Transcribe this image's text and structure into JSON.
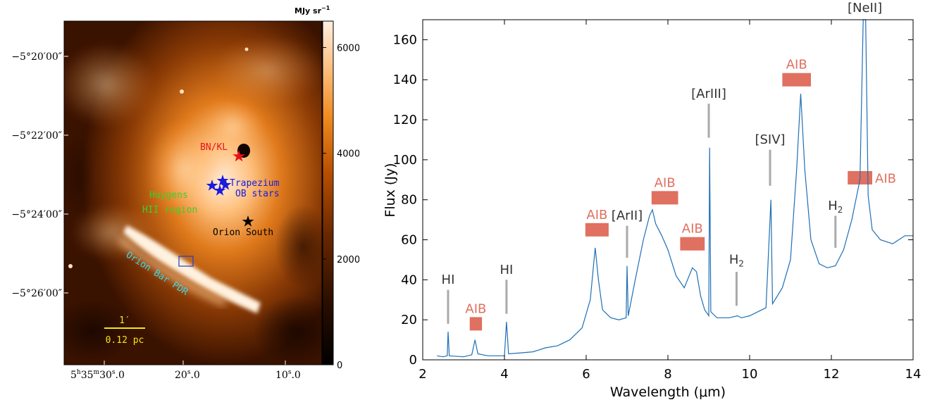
{
  "left_panel": {
    "colorbar": {
      "unit": "MJy sr",
      "unit_exp": "−1",
      "ticks": [
        "6000",
        "4000",
        "2000",
        "0"
      ],
      "tick_values": [
        6000,
        4000,
        2000,
        0
      ],
      "vmax": 6500,
      "colors": [
        "#000000",
        "#2a0e00",
        "#6a2800",
        "#b84f00",
        "#f08b1f",
        "#ffc58a",
        "#fff0e0"
      ]
    },
    "dec_ticks": [
      "−5°20′00″",
      "−5°22′00″",
      "−5°24′00″",
      "−5°26′00″"
    ],
    "ra_ticks": {
      "t1": {
        "h": "5",
        "hu": "h",
        "m": "35",
        "mu": "m",
        "s": "30",
        "su": "s",
        "f": ".0"
      },
      "t2": {
        "s": "20",
        "su": "s",
        "f": ".0"
      },
      "t3": {
        "s": "10",
        "su": "s",
        "f": ".0"
      }
    },
    "labels": {
      "bnkl": "BN/KL",
      "trapezium_1": "Trapezium",
      "trapezium_2": "OB stars",
      "huygens_1": "Huygens",
      "huygens_2": "HII region",
      "orion_south": "Orion South",
      "orion_bar": "Orion Bar PDR",
      "scale_top": "1′",
      "scale_bottom": "0.12 pc"
    },
    "label_colors": {
      "bnkl": "#e8121a",
      "trapezium": "#1a1ae0",
      "huygens": "#3ad12a",
      "orion_south": "#000000",
      "orion_bar": "#3fd8e0",
      "scale": "#f5e614"
    }
  },
  "chart_data": {
    "type": "line",
    "xlabel": "Wavelength (μm)",
    "ylabel": "Flux (Jy)",
    "xlim": [
      2,
      14
    ],
    "ylim": [
      0,
      170
    ],
    "x_ticks": [
      2,
      4,
      6,
      8,
      10,
      12,
      14
    ],
    "y_ticks": [
      0,
      20,
      40,
      60,
      80,
      100,
      120,
      140,
      160
    ],
    "line_color": "#1f6fb4",
    "series_points": [
      [
        2.35,
        2
      ],
      [
        2.5,
        1.5
      ],
      [
        2.6,
        2
      ],
      [
        2.62,
        14
      ],
      [
        2.65,
        2
      ],
      [
        3.0,
        1.5
      ],
      [
        3.2,
        2.5
      ],
      [
        3.28,
        10
      ],
      [
        3.35,
        3
      ],
      [
        3.6,
        2
      ],
      [
        4.0,
        2
      ],
      [
        4.05,
        19
      ],
      [
        4.1,
        3
      ],
      [
        4.4,
        3.5
      ],
      [
        4.7,
        4
      ],
      [
        5.0,
        6
      ],
      [
        5.3,
        7
      ],
      [
        5.6,
        10
      ],
      [
        5.9,
        16
      ],
      [
        6.1,
        30
      ],
      [
        6.22,
        56
      ],
      [
        6.3,
        40
      ],
      [
        6.4,
        25
      ],
      [
        6.6,
        21
      ],
      [
        6.8,
        20
      ],
      [
        6.98,
        21
      ],
      [
        7.0,
        47
      ],
      [
        7.03,
        22
      ],
      [
        7.2,
        40
      ],
      [
        7.4,
        60
      ],
      [
        7.55,
        72
      ],
      [
        7.62,
        75
      ],
      [
        7.7,
        68
      ],
      [
        7.85,
        62
      ],
      [
        8.0,
        55
      ],
      [
        8.2,
        42
      ],
      [
        8.4,
        36
      ],
      [
        8.6,
        46
      ],
      [
        8.7,
        44
      ],
      [
        8.8,
        32
      ],
      [
        8.9,
        25
      ],
      [
        9.0,
        22
      ],
      [
        9.02,
        106
      ],
      [
        9.05,
        24
      ],
      [
        9.2,
        21
      ],
      [
        9.5,
        21
      ],
      [
        9.7,
        22
      ],
      [
        9.8,
        21
      ],
      [
        10.0,
        22
      ],
      [
        10.2,
        24
      ],
      [
        10.4,
        26
      ],
      [
        10.52,
        80
      ],
      [
        10.56,
        28
      ],
      [
        10.8,
        36
      ],
      [
        11.0,
        50
      ],
      [
        11.15,
        95
      ],
      [
        11.25,
        133
      ],
      [
        11.35,
        95
      ],
      [
        11.5,
        60
      ],
      [
        11.7,
        48
      ],
      [
        11.9,
        46
      ],
      [
        12.1,
        47
      ],
      [
        12.3,
        55
      ],
      [
        12.5,
        70
      ],
      [
        12.7,
        90
      ],
      [
        12.78,
        170
      ],
      [
        12.84,
        170
      ],
      [
        12.9,
        82
      ],
      [
        13.0,
        65
      ],
      [
        13.2,
        60
      ],
      [
        13.5,
        58
      ],
      [
        13.8,
        62
      ],
      [
        14.0,
        62
      ]
    ],
    "annotations": [
      {
        "text": "HI",
        "x": 2.62,
        "y_text": 38,
        "line_from": 18,
        "line_to": 35,
        "type": "line"
      },
      {
        "text": "HI",
        "x": 4.05,
        "y_text": 43,
        "line_from": 23,
        "line_to": 40,
        "type": "line"
      },
      {
        "text": "[ArII]",
        "x": 7.0,
        "y_text": 70,
        "line_from": 51,
        "line_to": 67,
        "type": "line"
      },
      {
        "text": "[ArIII]",
        "x": 9.0,
        "y_text": 131,
        "line_from": 111,
        "line_to": 128,
        "type": "line"
      },
      {
        "text": "H2",
        "x": 9.68,
        "y_text": 48,
        "line_from": 27,
        "line_to": 44,
        "type": "line"
      },
      {
        "text": "[SIV]",
        "x": 10.5,
        "y_text": 108,
        "line_from": 87,
        "line_to": 105,
        "type": "line"
      },
      {
        "text": "H2",
        "x": 12.1,
        "y_text": 75,
        "line_from": 56,
        "line_to": 72,
        "type": "line"
      },
      {
        "text": "[NeII]",
        "x": 12.82,
        "y_text": 176,
        "type": "none"
      }
    ],
    "aib_bands": [
      {
        "label": "AIB",
        "x0": 3.15,
        "x1": 3.45,
        "y": 18,
        "label_y": 21,
        "label_pos": "above"
      },
      {
        "label": "AIB",
        "x0": 5.98,
        "x1": 6.55,
        "y": 65,
        "label_y": 68,
        "label_pos": "above"
      },
      {
        "label": "AIB",
        "x0": 7.6,
        "x1": 8.25,
        "y": 81,
        "label_y": 84,
        "label_pos": "above"
      },
      {
        "label": "AIB",
        "x0": 8.3,
        "x1": 8.9,
        "y": 58,
        "label_y": 61,
        "label_pos": "above"
      },
      {
        "label": "AIB",
        "x0": 10.8,
        "x1": 11.5,
        "y": 140,
        "label_y": 143,
        "label_pos": "above"
      },
      {
        "label": "AIB",
        "x0": 12.4,
        "x1": 13.0,
        "y": 91,
        "label_y": 91,
        "label_pos": "right"
      }
    ],
    "aib_color": "#e07060",
    "annotation_text_color": "#333333",
    "annotation_line_color": "#aaaaaa"
  }
}
